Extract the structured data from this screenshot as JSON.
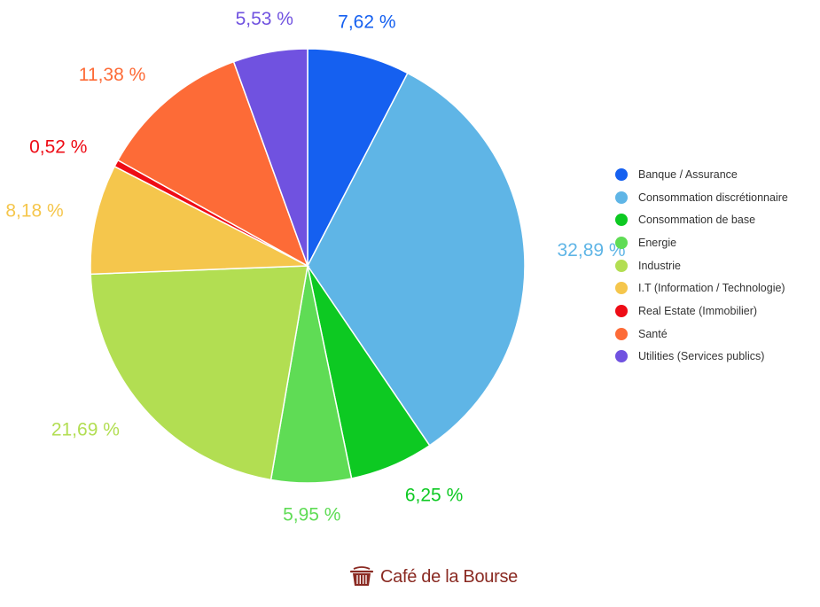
{
  "chart_data": {
    "type": "pie",
    "slices": [
      {
        "label": "Banque / Assurance",
        "value": 7.62,
        "value_label": "7,62 %",
        "color": "#1560f0"
      },
      {
        "label": "Consommation discrétionnaire",
        "value": 32.89,
        "value_label": "32,89 %",
        "color": "#5fb5e6"
      },
      {
        "label": "Consommation de base",
        "value": 6.25,
        "value_label": "6,25 %",
        "color": "#0dc922"
      },
      {
        "label": "Energie",
        "value": 5.95,
        "value_label": "5,95 %",
        "color": "#5fdc55"
      },
      {
        "label": "Industrie",
        "value": 21.69,
        "value_label": "21,69 %",
        "color": "#b2de52"
      },
      {
        "label": "I.T (Information / Technologie)",
        "value": 8.18,
        "value_label": "8,18 %",
        "color": "#f5c64c"
      },
      {
        "label": "Real Estate (Immobilier)",
        "value": 0.52,
        "value_label": "0,52 %",
        "color": "#ee0c16"
      },
      {
        "label": "Santé",
        "value": 11.38,
        "value_label": "11,38 %",
        "color": "#fd6b37"
      },
      {
        "label": "Utilities (Services publics)",
        "value": 5.53,
        "value_label": "5,53 %",
        "color": "#7052e0"
      }
    ],
    "legend_position": "right",
    "start": "top, clockwise"
  },
  "brand": {
    "name": "Café de la Bourse",
    "color": "#8a2a22",
    "icon": "cooking-pot-icon"
  }
}
